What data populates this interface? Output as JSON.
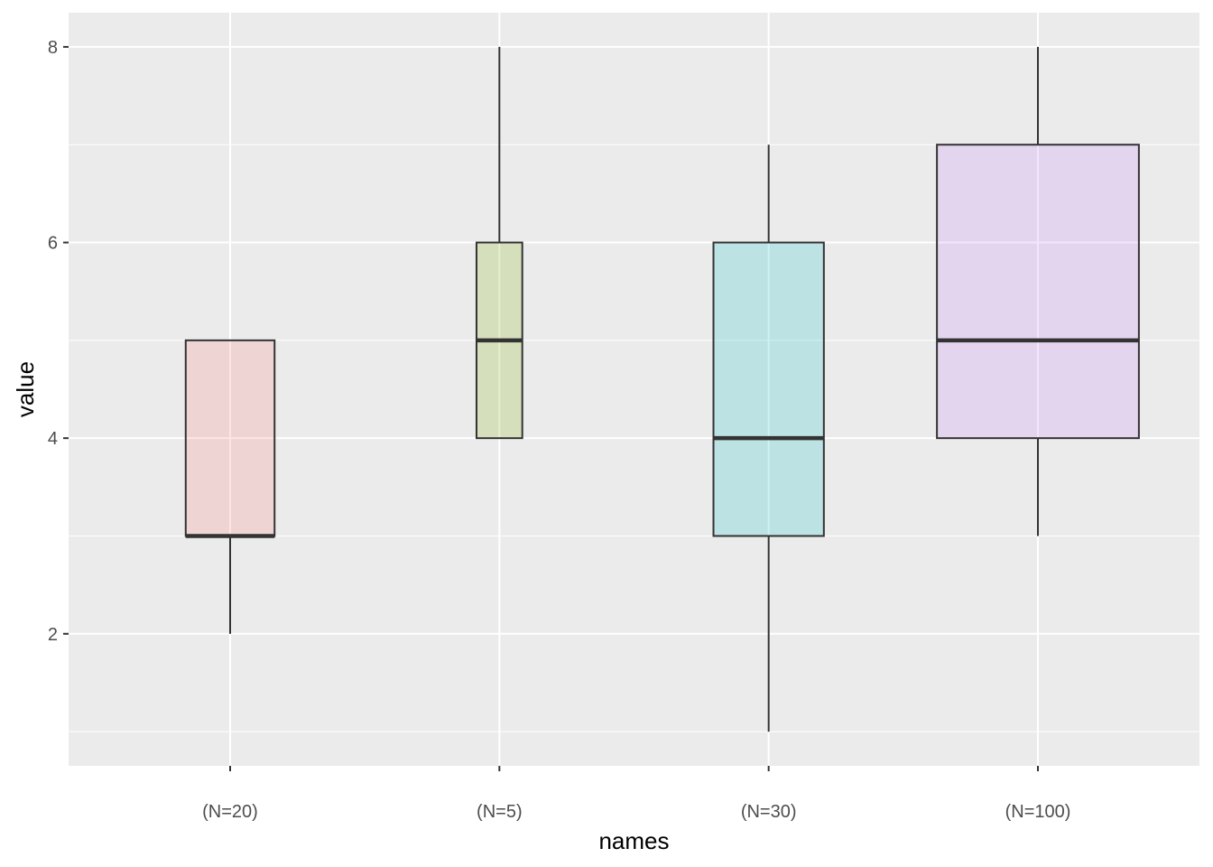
{
  "chart_data": {
    "type": "box",
    "xlabel": "names",
    "ylabel": "value",
    "ylim": [
      0.65,
      8.35
    ],
    "y_ticks": [
      2,
      4,
      6,
      8
    ],
    "y_tick_labels": [
      "2",
      "4",
      "6",
      "8"
    ],
    "grid": true,
    "legend": "none",
    "panel_background": "#ebebeb",
    "grid_color": "#ffffff",
    "box_outline_color": "#333333",
    "categories": [
      "(N=20)",
      "(N=5)",
      "(N=30)",
      "(N=100)"
    ],
    "boxes": [
      {
        "category": "(N=20)",
        "whisker_low": 2,
        "q1": 3,
        "median": 3,
        "q3": 5,
        "whisker_high": 5,
        "fill": "#f8766d",
        "width_fraction": 0.33
      },
      {
        "category": "(N=5)",
        "whisker_low": 4,
        "q1": 4,
        "median": 5,
        "q3": 6,
        "whisker_high": 8,
        "fill": "#7cae00",
        "width_fraction": 0.17
      },
      {
        "category": "(N=30)",
        "whisker_low": 1,
        "q1": 3,
        "median": 4,
        "q3": 6,
        "whisker_high": 7,
        "fill": "#00bfc4",
        "width_fraction": 0.41
      },
      {
        "category": "(N=100)",
        "whisker_low": 3,
        "q1": 4,
        "median": 5,
        "q3": 7,
        "whisker_high": 8,
        "fill": "#c77cff",
        "width_fraction": 0.75
      }
    ]
  }
}
